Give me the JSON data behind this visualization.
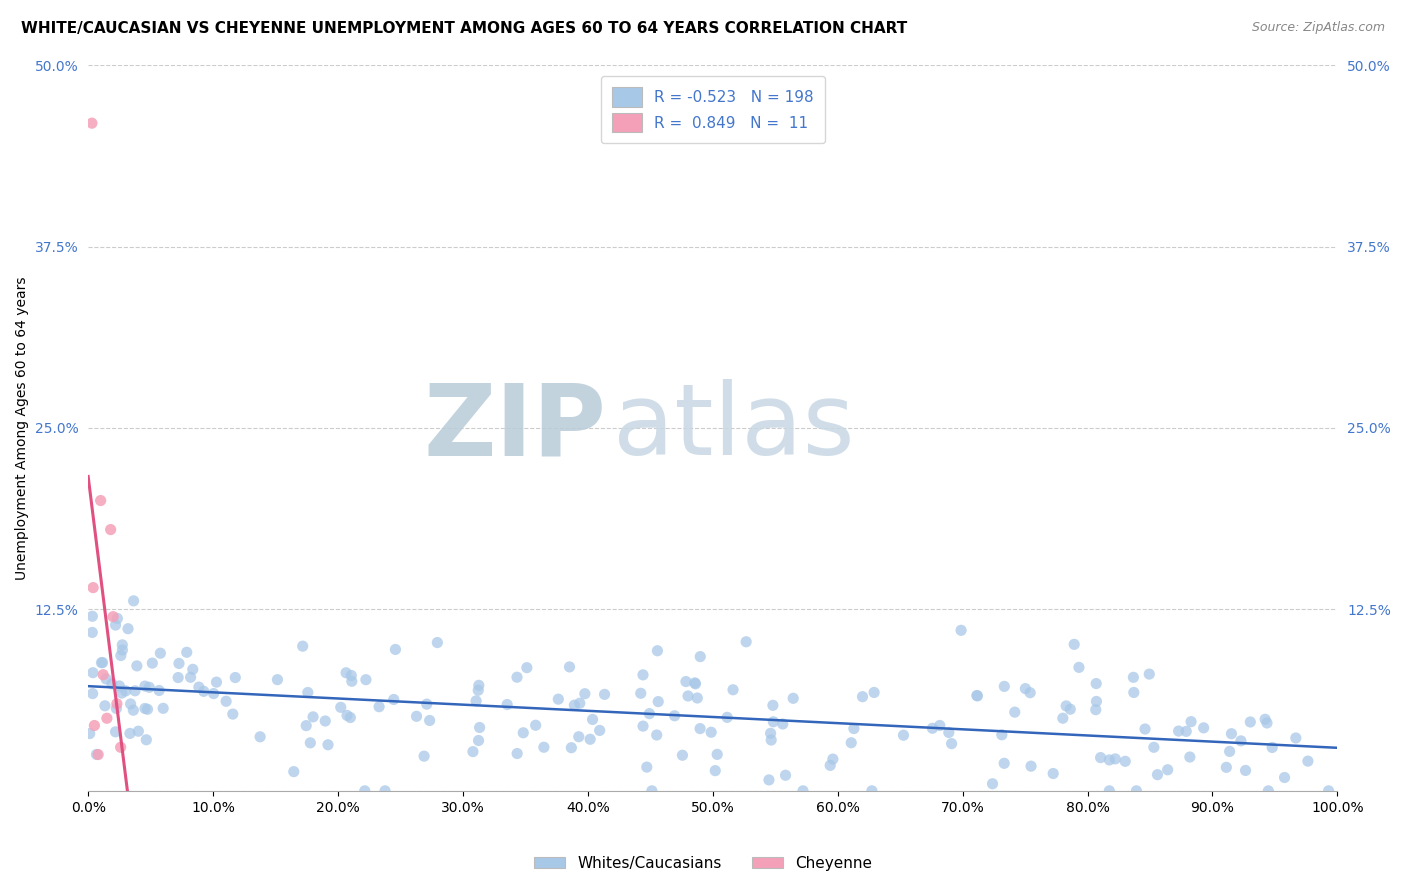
{
  "title": "WHITE/CAUCASIAN VS CHEYENNE UNEMPLOYMENT AMONG AGES 60 TO 64 YEARS CORRELATION CHART",
  "source": "Source: ZipAtlas.com",
  "ylabel": "Unemployment Among Ages 60 to 64 years",
  "blue_R": -0.523,
  "blue_N": 198,
  "pink_R": 0.849,
  "pink_N": 11,
  "xlim": [
    0,
    100
  ],
  "ylim": [
    0,
    50
  ],
  "yticks": [
    0,
    12.5,
    25.0,
    37.5,
    50.0
  ],
  "ytick_labels": [
    "",
    "12.5%",
    "25.0%",
    "37.5%",
    "50.0%"
  ],
  "xticks": [
    0,
    10,
    20,
    30,
    40,
    50,
    60,
    70,
    80,
    90,
    100
  ],
  "xtick_labels": [
    "0.0%",
    "10.0%",
    "20.0%",
    "30.0%",
    "40.0%",
    "50.0%",
    "60.0%",
    "70.0%",
    "80.0%",
    "90.0%",
    "100.0%"
  ],
  "blue_scatter_color": "#a8c8e8",
  "pink_scatter_color": "#f4a0b8",
  "blue_line_color": "#3366bb",
  "pink_line_color": "#e05080",
  "grid_color": "#cccccc",
  "bg_color": "#ffffff",
  "watermark_color": "#ccdde8",
  "title_fontsize": 11,
  "axis_label_fontsize": 10,
  "tick_fontsize": 10,
  "legend_fontsize": 11,
  "tick_color_right": "#4477cc"
}
